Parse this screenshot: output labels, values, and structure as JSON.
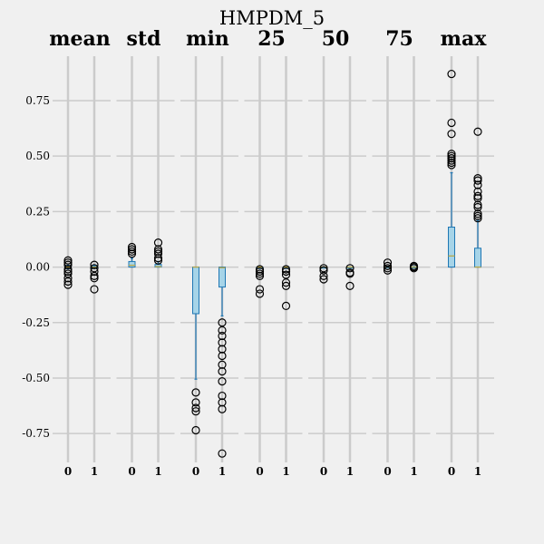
{
  "chart_data": {
    "type": "box",
    "title": "HMPDM_5",
    "ylim": [
      -0.88,
      0.95
    ],
    "yticks": [
      {
        "v": 0.75,
        "label": "0.75"
      },
      {
        "v": 0.5,
        "label": "0.50"
      },
      {
        "v": 0.25,
        "label": "0.25"
      },
      {
        "v": 0.0,
        "label": "0.00"
      },
      {
        "v": -0.25,
        "label": "-0.25"
      },
      {
        "v": -0.5,
        "label": "-0.50"
      },
      {
        "v": -0.75,
        "label": "-0.75"
      }
    ],
    "colors": {
      "box_fill": "#a6d4e8",
      "box_edge": "#1f77b4",
      "whisker": "#1f77b4",
      "median": "#b8a84a",
      "grid": "#cbcbcb",
      "background": "#f0f0f0"
    },
    "panels": [
      {
        "title": "mean",
        "boxes": [
          {
            "label": "0",
            "q1": -0.005,
            "med": 0.0,
            "q3": 0.004,
            "wlo": -0.008,
            "whi": 0.008,
            "outliers": [
              0.03,
              0.02,
              0.01,
              -0.01,
              -0.02,
              -0.03,
              -0.05,
              -0.065,
              -0.08
            ]
          },
          {
            "label": "1",
            "q1": -0.004,
            "med": 0.0,
            "q3": 0.003,
            "wlo": -0.006,
            "whi": 0.006,
            "outliers": [
              0.01,
              -0.005,
              -0.02,
              -0.04,
              -0.05,
              -0.1
            ]
          }
        ]
      },
      {
        "title": "std",
        "boxes": [
          {
            "label": "0",
            "q1": 0.0,
            "med": 0.008,
            "q3": 0.025,
            "wlo": 0.0,
            "whi": 0.04,
            "outliers": [
              0.09,
              0.08,
              0.07,
              0.06
            ]
          },
          {
            "label": "1",
            "q1": 0.0,
            "med": 0.002,
            "q3": 0.012,
            "wlo": 0.0,
            "whi": 0.025,
            "outliers": [
              0.11,
              0.08,
              0.07,
              0.06,
              0.04,
              0.03
            ]
          }
        ]
      },
      {
        "title": "min",
        "boxes": [
          {
            "label": "0",
            "q1": -0.21,
            "med": 0.0,
            "q3": 0.0,
            "wlo": -0.505,
            "whi": 0.0,
            "outliers": [
              -0.565,
              -0.61,
              -0.635,
              -0.65,
              -0.735
            ]
          },
          {
            "label": "1",
            "q1": -0.09,
            "med": -0.003,
            "q3": 0.0,
            "wlo": -0.22,
            "whi": 0.0,
            "outliers": [
              -0.25,
              -0.285,
              -0.31,
              -0.34,
              -0.37,
              -0.4,
              -0.44,
              -0.47,
              -0.515,
              -0.58,
              -0.61,
              -0.64,
              -0.84
            ]
          }
        ]
      },
      {
        "title": "25",
        "boxes": [
          {
            "label": "0",
            "q1": -0.004,
            "med": 0.0,
            "q3": 0.0,
            "wlo": -0.006,
            "whi": 0.0,
            "outliers": [
              -0.01,
              -0.02,
              -0.03,
              -0.04,
              -0.1,
              -0.12
            ]
          },
          {
            "label": "1",
            "q1": -0.004,
            "med": 0.0,
            "q3": 0.0,
            "wlo": -0.006,
            "whi": 0.0,
            "outliers": [
              -0.01,
              -0.02,
              -0.035,
              -0.07,
              -0.085,
              -0.175
            ]
          }
        ]
      },
      {
        "title": "50",
        "boxes": [
          {
            "label": "0",
            "q1": -0.002,
            "med": 0.0,
            "q3": 0.0,
            "wlo": -0.003,
            "whi": 0.0,
            "outliers": [
              -0.005,
              -0.015,
              -0.04,
              -0.055
            ]
          },
          {
            "label": "1",
            "q1": -0.002,
            "med": 0.0,
            "q3": 0.0,
            "wlo": -0.003,
            "whi": 0.0,
            "outliers": [
              -0.005,
              -0.025,
              -0.03,
              -0.085
            ]
          }
        ]
      },
      {
        "title": "75",
        "boxes": [
          {
            "label": "0",
            "q1": -0.002,
            "med": 0.0,
            "q3": 0.002,
            "wlo": -0.003,
            "whi": 0.003,
            "outliers": [
              0.02,
              0.005,
              -0.005,
              -0.015
            ]
          },
          {
            "label": "1",
            "q1": -0.001,
            "med": 0.0,
            "q3": 0.001,
            "wlo": -0.002,
            "whi": 0.002,
            "outliers": [
              0.005,
              0.0,
              -0.005
            ]
          }
        ]
      },
      {
        "title": "max",
        "boxes": [
          {
            "label": "0",
            "q1": 0.0,
            "med": 0.05,
            "q3": 0.18,
            "wlo": 0.0,
            "whi": 0.425,
            "outliers": [
              0.87,
              0.65,
              0.6,
              0.51,
              0.5,
              0.49,
              0.48,
              0.47,
              0.46
            ]
          },
          {
            "label": "1",
            "q1": 0.0,
            "med": 0.0,
            "q3": 0.085,
            "wlo": 0.0,
            "whi": 0.21,
            "outliers": [
              0.61,
              0.4,
              0.39,
              0.37,
              0.34,
              0.32,
              0.31,
              0.28,
              0.27,
              0.24,
              0.23,
              0.22
            ]
          }
        ]
      }
    ]
  }
}
